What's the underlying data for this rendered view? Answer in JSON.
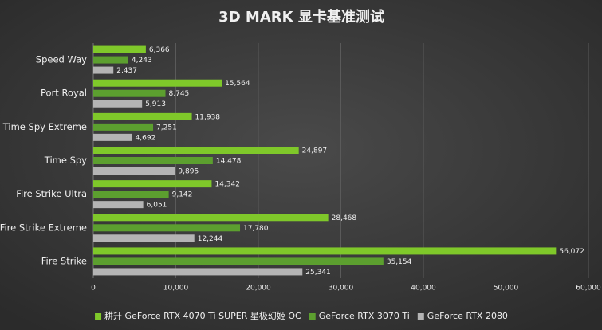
{
  "chart_data": {
    "type": "bar",
    "orientation": "horizontal",
    "title": "3D MARK 显卡基准测试",
    "categories": [
      "Speed Way",
      "Port Royal",
      "Time Spy Extreme",
      "Time Spy",
      "Fire Strike Ultra",
      "Fire Strike Extreme",
      "Fire Strike"
    ],
    "series": [
      {
        "name": "耕升 GeForce RTX 4070 Ti SUPER 星极幻姬 OC",
        "color": "#7fc82a",
        "values": [
          6366,
          15564,
          11938,
          24897,
          14342,
          28468,
          56072
        ],
        "value_labels": [
          "6,366",
          "15,564",
          "11,938",
          "24,897",
          "14,342",
          "28,468",
          "56,072"
        ]
      },
      {
        "name": "GeForce RTX 3070 Ti",
        "color": "#5c9f2f",
        "values": [
          4243,
          8745,
          7251,
          14478,
          9142,
          17780,
          35154
        ],
        "value_labels": [
          "4,243",
          "8,745",
          "7,251",
          "14,478",
          "9,142",
          "17,780",
          "35,154"
        ]
      },
      {
        "name": "GeForce RTX 2080",
        "color": "#b4b4b4",
        "values": [
          2437,
          5913,
          4692,
          9895,
          6051,
          12244,
          25341
        ],
        "value_labels": [
          "2,437",
          "5,913",
          "4,692",
          "9,895",
          "6,051",
          "12,244",
          "25,341"
        ]
      }
    ],
    "xlim": [
      0,
      60000
    ],
    "xticks": [
      0,
      {
        "value": 10000,
        "label": "10,000"
      },
      {
        "value": 20000,
        "label": "20,000"
      },
      {
        "value": 30000,
        "label": "30,000"
      },
      {
        "value": 40000,
        "label": "40,000"
      },
      {
        "value": 50000,
        "label": "50,000"
      },
      {
        "value": 60000,
        "label": "60,000"
      }
    ],
    "grid": true,
    "legend": "bottom"
  }
}
